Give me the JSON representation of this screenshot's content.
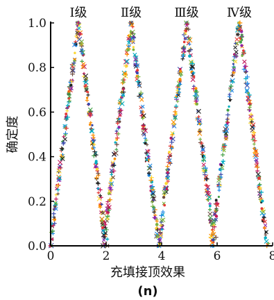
{
  "chart_data": {
    "type": "scatter",
    "title": "",
    "xlabel": "充填接顶效果",
    "ylabel": "确定度",
    "panel_label": "(n)",
    "xlim": [
      0,
      8
    ],
    "ylim": [
      0.0,
      1.0
    ],
    "x_ticks": [
      "0",
      "2",
      "4",
      "6",
      "8"
    ],
    "y_ticks": [
      "0.0",
      "0.2",
      "0.4",
      "0.6",
      "0.8",
      "1.0"
    ],
    "grid": false,
    "legend": "none",
    "levels": [
      {
        "label": "Ⅰ级",
        "peak_x": 1.0
      },
      {
        "label": "Ⅱ级",
        "peak_x": 2.9
      },
      {
        "label": "Ⅲ级",
        "peak_x": 4.9
      },
      {
        "label": "Ⅳ级",
        "peak_x": 6.8
      }
    ],
    "series": [
      {
        "label": "Ⅰ级",
        "x_range": [
          0.0,
          2.0
        ],
        "peak_x": 1.0,
        "peak_y": 1.0
      },
      {
        "label": "Ⅱ级",
        "x_range": [
          1.9,
          3.9
        ],
        "peak_x": 2.9,
        "peak_y": 1.0
      },
      {
        "label": "Ⅲ级",
        "x_range": [
          3.9,
          5.9
        ],
        "peak_x": 4.9,
        "peak_y": 1.0
      },
      {
        "label": "Ⅳ级",
        "x_range": [
          5.8,
          7.8
        ],
        "peak_x": 6.8,
        "peak_y": 1.0
      }
    ],
    "marker_colors": [
      "#e53935",
      "#1e88e5",
      "#43a047",
      "#fdd835",
      "#8e24aa",
      "#00acc1",
      "#fb8c00",
      "#3949ab",
      "#c2185b",
      "#6d4c41",
      "#7cb342",
      "#212121"
    ]
  }
}
